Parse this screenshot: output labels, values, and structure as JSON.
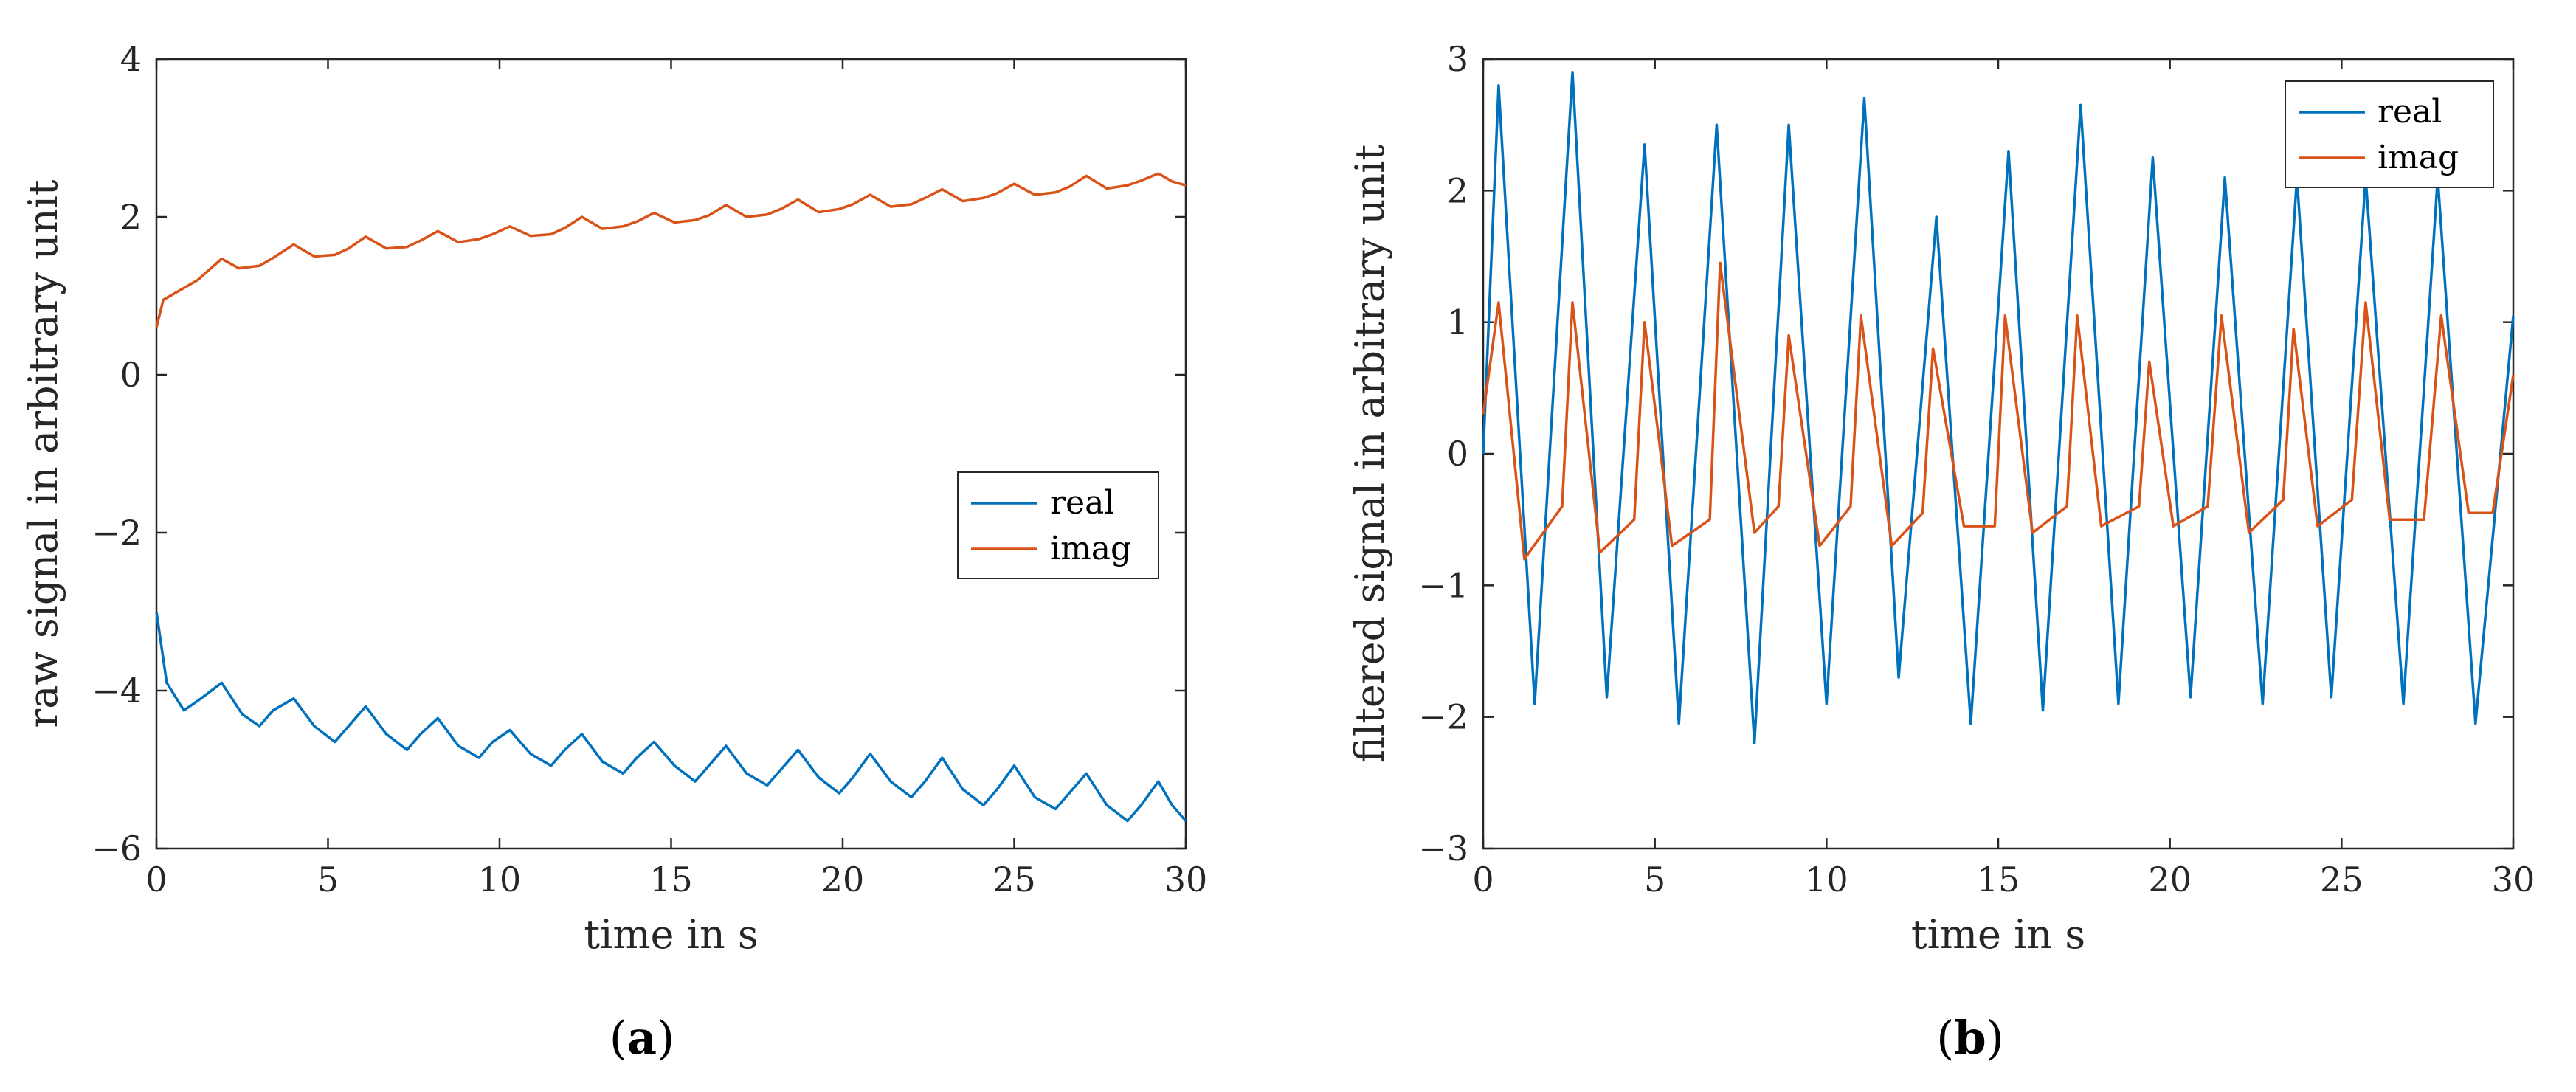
{
  "chart_data": [
    {
      "id": "a",
      "type": "line",
      "caption_letter": "a",
      "xlabel": "time in s",
      "ylabel": "raw signal in arbitrary unit",
      "xlim": [
        0,
        30
      ],
      "ylim": [
        -6,
        4
      ],
      "xticks": [
        0,
        5,
        10,
        15,
        20,
        25,
        30
      ],
      "yticks": [
        -6,
        -4,
        -2,
        0,
        2,
        4
      ],
      "xtick_labels": [
        "0",
        "5",
        "10",
        "15",
        "20",
        "25",
        "30"
      ],
      "ytick_labels": [
        "−6",
        "−4",
        "−2",
        "0",
        "2",
        "4"
      ],
      "legend": {
        "placement": "center-right",
        "entries": [
          "real",
          "imag"
        ]
      },
      "series": [
        {
          "name": "real",
          "color": "#0072BD",
          "x": [
            0,
            0.3,
            0.8,
            1.3,
            1.9,
            2.5,
            3.0,
            3.4,
            4.0,
            4.6,
            5.2,
            5.6,
            6.1,
            6.7,
            7.3,
            7.7,
            8.2,
            8.8,
            9.4,
            9.8,
            10.3,
            10.9,
            11.5,
            11.9,
            12.4,
            13.0,
            13.6,
            14.0,
            14.5,
            15.1,
            15.7,
            16.1,
            16.6,
            17.2,
            17.8,
            18.2,
            18.7,
            19.3,
            19.9,
            20.3,
            20.8,
            21.4,
            22.0,
            22.4,
            22.9,
            23.5,
            24.1,
            24.5,
            25.0,
            25.6,
            26.2,
            26.6,
            27.1,
            27.7,
            28.3,
            28.7,
            29.2,
            29.6,
            30.0
          ],
          "y": [
            -3.0,
            -3.9,
            -4.25,
            -4.1,
            -3.9,
            -4.3,
            -4.45,
            -4.25,
            -4.1,
            -4.45,
            -4.65,
            -4.45,
            -4.2,
            -4.55,
            -4.75,
            -4.55,
            -4.35,
            -4.7,
            -4.85,
            -4.65,
            -4.5,
            -4.8,
            -4.95,
            -4.75,
            -4.55,
            -4.9,
            -5.05,
            -4.85,
            -4.65,
            -4.95,
            -5.15,
            -4.95,
            -4.7,
            -5.05,
            -5.2,
            -5.0,
            -4.75,
            -5.1,
            -5.3,
            -5.1,
            -4.8,
            -5.15,
            -5.35,
            -5.15,
            -4.85,
            -5.25,
            -5.45,
            -5.25,
            -4.95,
            -5.35,
            -5.5,
            -5.3,
            -5.05,
            -5.45,
            -5.65,
            -5.45,
            -5.15,
            -5.45,
            -5.65
          ]
        },
        {
          "name": "imag",
          "color": "#D95319",
          "x": [
            0,
            0.2,
            0.6,
            1.2,
            1.9,
            2.4,
            3.0,
            3.4,
            4.0,
            4.6,
            5.2,
            5.6,
            6.1,
            6.7,
            7.3,
            7.7,
            8.2,
            8.8,
            9.4,
            9.8,
            10.3,
            10.9,
            11.5,
            11.9,
            12.4,
            13.0,
            13.6,
            14.0,
            14.5,
            15.1,
            15.7,
            16.1,
            16.6,
            17.2,
            17.8,
            18.2,
            18.7,
            19.3,
            19.9,
            20.3,
            20.8,
            21.4,
            22.0,
            22.4,
            22.9,
            23.5,
            24.1,
            24.5,
            25.0,
            25.6,
            26.2,
            26.6,
            27.1,
            27.7,
            28.3,
            28.7,
            29.2,
            29.6,
            30.0
          ],
          "y": [
            0.6,
            0.95,
            1.05,
            1.2,
            1.47,
            1.35,
            1.38,
            1.48,
            1.65,
            1.5,
            1.52,
            1.6,
            1.75,
            1.6,
            1.62,
            1.7,
            1.82,
            1.68,
            1.72,
            1.78,
            1.88,
            1.76,
            1.78,
            1.86,
            2.0,
            1.85,
            1.88,
            1.94,
            2.05,
            1.93,
            1.96,
            2.02,
            2.15,
            2.0,
            2.03,
            2.1,
            2.22,
            2.06,
            2.1,
            2.16,
            2.28,
            2.13,
            2.16,
            2.24,
            2.35,
            2.2,
            2.24,
            2.3,
            2.42,
            2.28,
            2.31,
            2.38,
            2.52,
            2.36,
            2.4,
            2.46,
            2.55,
            2.45,
            2.4
          ]
        }
      ]
    },
    {
      "id": "b",
      "type": "line",
      "caption_letter": "b",
      "xlabel": "time in s",
      "ylabel": "filtered signal in arbitrary unit",
      "xlim": [
        0,
        30
      ],
      "ylim": [
        -3,
        3
      ],
      "xticks": [
        0,
        5,
        10,
        15,
        20,
        25,
        30
      ],
      "yticks": [
        -3,
        -2,
        -1,
        0,
        1,
        2,
        3
      ],
      "xtick_labels": [
        "0",
        "5",
        "10",
        "15",
        "20",
        "25",
        "30"
      ],
      "ytick_labels": [
        "−3",
        "−2",
        "−1",
        "0",
        "1",
        "2",
        "3"
      ],
      "legend": {
        "placement": "top-right",
        "entries": [
          "real",
          "imag"
        ]
      },
      "series": [
        {
          "name": "real",
          "color": "#0072BD",
          "x": [
            0,
            0.45,
            1.5,
            2.6,
            3.6,
            4.7,
            5.7,
            6.8,
            7.9,
            8.9,
            10.0,
            11.1,
            12.1,
            13.2,
            14.2,
            15.3,
            16.3,
            17.4,
            18.5,
            19.5,
            20.6,
            21.6,
            22.7,
            23.7,
            24.7,
            25.7,
            26.8,
            27.8,
            28.9,
            30.0
          ],
          "y": [
            0.0,
            2.8,
            -1.9,
            2.9,
            -1.85,
            2.35,
            -2.05,
            2.5,
            -2.2,
            2.5,
            -1.9,
            2.7,
            -1.7,
            1.8,
            -2.05,
            2.3,
            -1.95,
            2.65,
            -1.9,
            2.25,
            -1.85,
            2.1,
            -1.9,
            2.1,
            -1.85,
            2.1,
            -1.9,
            2.1,
            -2.05,
            1.05
          ]
        },
        {
          "name": "imag",
          "color": "#D95319",
          "x": [
            0,
            0.45,
            1.2,
            2.3,
            2.6,
            3.4,
            4.4,
            4.7,
            5.5,
            6.6,
            6.9,
            7.9,
            8.6,
            8.9,
            9.8,
            10.7,
            11.0,
            11.9,
            12.8,
            13.1,
            14.0,
            14.9,
            15.2,
            16.0,
            17.0,
            17.3,
            18.0,
            19.1,
            19.4,
            20.1,
            21.1,
            21.5,
            22.3,
            23.3,
            23.6,
            24.3,
            25.3,
            25.7,
            26.4,
            27.4,
            27.9,
            28.7,
            29.4,
            30.0
          ],
          "y": [
            0.3,
            1.15,
            -0.8,
            -0.4,
            1.15,
            -0.75,
            -0.5,
            1.0,
            -0.7,
            -0.5,
            1.45,
            -0.6,
            -0.4,
            0.9,
            -0.7,
            -0.4,
            1.05,
            -0.7,
            -0.45,
            0.8,
            -0.55,
            -0.55,
            1.05,
            -0.6,
            -0.4,
            1.05,
            -0.55,
            -0.4,
            0.7,
            -0.55,
            -0.4,
            1.05,
            -0.6,
            -0.35,
            0.95,
            -0.55,
            -0.35,
            1.15,
            -0.5,
            -0.5,
            1.05,
            -0.45,
            -0.45,
            0.6
          ]
        }
      ]
    }
  ]
}
